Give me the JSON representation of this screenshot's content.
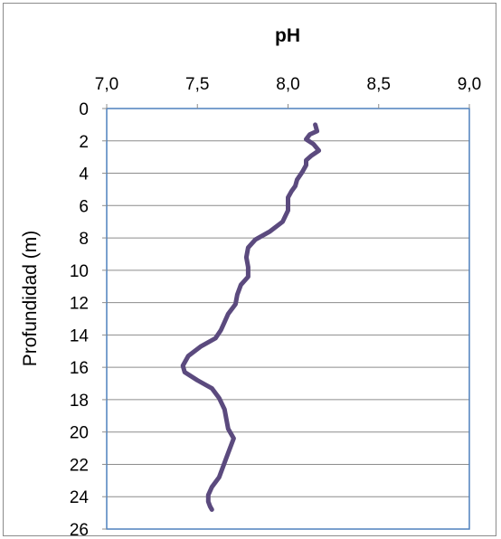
{
  "chart_data": {
    "type": "line",
    "title": "pH",
    "xlabel": "",
    "ylabel": "Profundidad (m)",
    "xlim": [
      7.0,
      9.0
    ],
    "ylim": [
      0,
      26
    ],
    "y_reversed": true,
    "x_axis_position": "top",
    "x_ticks": [
      "7,0",
      "7,5",
      "8,0",
      "8,5",
      "9,0"
    ],
    "x_tick_values": [
      7.0,
      7.5,
      8.0,
      8.5,
      9.0
    ],
    "y_ticks": [
      "0",
      "2",
      "4",
      "6",
      "8",
      "10",
      "12",
      "14",
      "16",
      "18",
      "20",
      "22",
      "24",
      "26"
    ],
    "y_tick_values": [
      0,
      2,
      4,
      6,
      8,
      10,
      12,
      14,
      16,
      18,
      20,
      22,
      24,
      26
    ],
    "grid": "horizontal",
    "legend": "none",
    "colors": {
      "line": "#5b4a7e",
      "plot_border": "#4f81bd",
      "gridline": "#8c8c8c"
    },
    "series": [
      {
        "x": [
          8.15,
          8.16,
          8.12,
          8.1,
          8.14,
          8.17,
          8.13,
          8.1,
          8.1,
          8.08,
          8.05,
          8.04,
          8.02,
          8.0,
          8.0,
          7.97,
          7.9,
          7.82,
          7.78,
          7.77,
          7.78,
          7.78,
          7.74,
          7.72,
          7.71,
          7.67,
          7.65,
          7.63,
          7.6,
          7.52,
          7.45,
          7.42,
          7.43,
          7.5,
          7.58,
          7.62,
          7.65,
          7.66,
          7.67,
          7.7,
          7.68,
          7.66,
          7.64,
          7.62,
          7.58,
          7.56,
          7.56,
          7.57,
          7.58
        ],
        "y": [
          1.0,
          1.4,
          1.6,
          1.9,
          2.2,
          2.6,
          2.9,
          3.2,
          3.5,
          3.9,
          4.4,
          4.8,
          5.1,
          5.5,
          6.3,
          7.0,
          7.6,
          8.1,
          8.6,
          9.2,
          9.8,
          10.4,
          10.9,
          11.5,
          12.1,
          12.7,
          13.2,
          13.7,
          14.2,
          14.7,
          15.3,
          15.9,
          16.3,
          16.8,
          17.3,
          17.9,
          18.6,
          19.2,
          19.8,
          20.4,
          21.0,
          21.6,
          22.2,
          22.8,
          23.4,
          23.9,
          24.3,
          24.6,
          24.8
        ]
      }
    ]
  }
}
